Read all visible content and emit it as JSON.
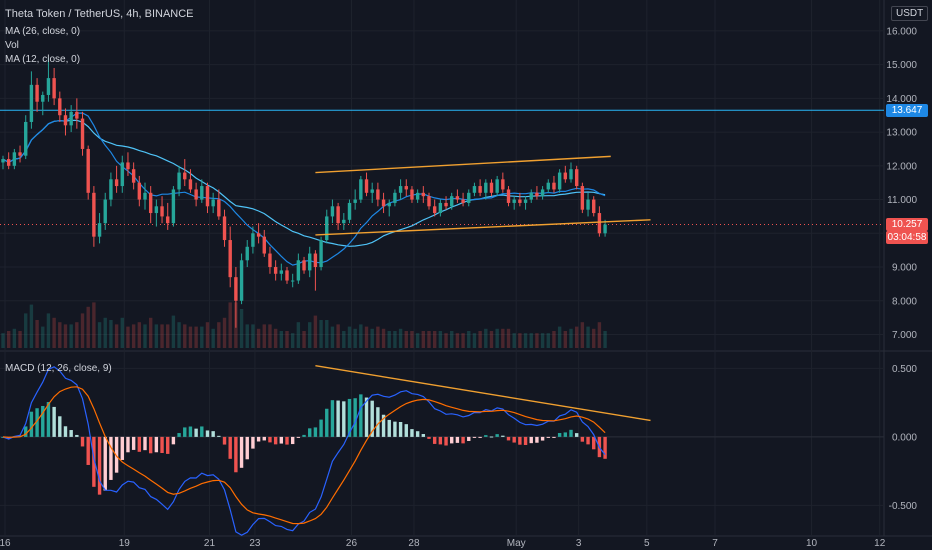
{
  "header": {
    "symbol": "Theta Token / TetherUS, 4h, BINANCE",
    "indicators": [
      "MA (26, close, 0)",
      "Vol",
      "MA (12, close, 0)"
    ],
    "macd_label": "MACD (12, 26, close, 9)",
    "currency": "USDT"
  },
  "chart_data": [
    {
      "type": "candlestick",
      "panel": "price",
      "ylim": [
        6.6,
        16.5
      ],
      "yticks": [
        "16.000",
        "15.000",
        "14.000",
        "13.000",
        "12.000",
        "11.000",
        "10.000",
        "9.000",
        "8.000",
        "7.000"
      ],
      "xticks": [
        "16",
        "19",
        "21",
        "23",
        "26",
        "28",
        "May",
        "3",
        "5",
        "7",
        "10",
        "12"
      ],
      "ohlc": [
        [
          12.1,
          12.3,
          11.9,
          12.2
        ],
        [
          12.2,
          12.4,
          11.9,
          12.0
        ],
        [
          12.0,
          12.5,
          11.9,
          12.4
        ],
        [
          12.4,
          12.6,
          12.1,
          12.3
        ],
        [
          12.3,
          13.5,
          12.2,
          13.3
        ],
        [
          13.3,
          14.8,
          13.1,
          14.4
        ],
        [
          14.4,
          14.6,
          13.6,
          13.9
        ],
        [
          13.9,
          14.2,
          13.5,
          14.1
        ],
        [
          14.1,
          15.2,
          13.9,
          14.6
        ],
        [
          14.6,
          14.9,
          13.8,
          14.0
        ],
        [
          14.0,
          14.2,
          13.3,
          13.5
        ],
        [
          13.5,
          13.7,
          12.9,
          13.2
        ],
        [
          13.2,
          13.8,
          13.0,
          13.6
        ],
        [
          13.6,
          14.0,
          13.1,
          13.4
        ],
        [
          13.4,
          13.6,
          12.3,
          12.5
        ],
        [
          12.5,
          12.6,
          11.0,
          11.2
        ],
        [
          11.2,
          11.4,
          9.6,
          9.9
        ],
        [
          9.9,
          10.6,
          9.7,
          10.3
        ],
        [
          10.3,
          11.2,
          10.1,
          11.0
        ],
        [
          11.0,
          11.8,
          10.8,
          11.6
        ],
        [
          11.6,
          12.0,
          11.2,
          11.4
        ],
        [
          11.4,
          12.3,
          11.2,
          12.1
        ],
        [
          12.1,
          12.4,
          11.7,
          11.9
        ],
        [
          11.9,
          12.1,
          11.3,
          11.5
        ],
        [
          11.5,
          11.7,
          10.8,
          11.0
        ],
        [
          11.0,
          11.5,
          10.7,
          11.2
        ],
        [
          11.2,
          11.4,
          10.3,
          10.6
        ],
        [
          10.6,
          11.0,
          10.2,
          10.8
        ],
        [
          10.8,
          11.1,
          10.3,
          10.5
        ],
        [
          10.5,
          10.9,
          10.1,
          10.3
        ],
        [
          10.3,
          11.4,
          10.2,
          11.3
        ],
        [
          11.3,
          12.0,
          11.1,
          11.8
        ],
        [
          11.8,
          12.2,
          11.4,
          11.6
        ],
        [
          11.6,
          11.9,
          11.2,
          11.3
        ],
        [
          11.3,
          11.5,
          10.8,
          11.0
        ],
        [
          11.0,
          11.6,
          10.9,
          11.4
        ],
        [
          11.4,
          11.5,
          10.6,
          10.8
        ],
        [
          10.8,
          11.2,
          10.6,
          11.0
        ],
        [
          11.0,
          11.3,
          10.4,
          10.5
        ],
        [
          10.5,
          10.7,
          9.6,
          9.8
        ],
        [
          9.8,
          10.2,
          8.4,
          8.7
        ],
        [
          8.7,
          9.0,
          7.2,
          8.0
        ],
        [
          8.0,
          9.4,
          7.9,
          9.2
        ],
        [
          9.2,
          9.8,
          9.0,
          9.6
        ],
        [
          9.6,
          10.2,
          9.4,
          10.0
        ],
        [
          10.0,
          10.3,
          9.7,
          9.9
        ],
        [
          9.9,
          10.1,
          9.3,
          9.4
        ],
        [
          9.4,
          9.6,
          8.8,
          9.0
        ],
        [
          9.0,
          9.2,
          8.6,
          8.8
        ],
        [
          8.8,
          9.1,
          8.6,
          8.9
        ],
        [
          8.9,
          9.0,
          8.5,
          8.6
        ],
        [
          8.6,
          8.8,
          8.4,
          8.6
        ],
        [
          8.6,
          9.4,
          8.5,
          9.2
        ],
        [
          9.2,
          9.3,
          8.8,
          8.9
        ],
        [
          8.9,
          9.6,
          8.7,
          9.4
        ],
        [
          9.4,
          9.5,
          8.3,
          9.0
        ],
        [
          9.0,
          9.9,
          8.9,
          9.8
        ],
        [
          9.8,
          10.7,
          9.7,
          10.5
        ],
        [
          10.5,
          11.0,
          10.3,
          10.8
        ],
        [
          10.8,
          10.9,
          10.1,
          10.3
        ],
        [
          10.3,
          10.6,
          10.1,
          10.4
        ],
        [
          10.4,
          11.0,
          10.3,
          10.9
        ],
        [
          10.9,
          11.3,
          10.7,
          11.0
        ],
        [
          11.0,
          11.7,
          10.9,
          11.6
        ],
        [
          11.6,
          11.8,
          11.1,
          11.2
        ],
        [
          11.2,
          11.5,
          10.9,
          11.3
        ],
        [
          11.3,
          11.5,
          10.8,
          11.0
        ],
        [
          11.0,
          11.2,
          10.6,
          10.8
        ],
        [
          10.8,
          11.0,
          10.5,
          10.9
        ],
        [
          10.9,
          11.3,
          10.8,
          11.2
        ],
        [
          11.2,
          11.6,
          11.0,
          11.4
        ],
        [
          11.4,
          11.6,
          11.1,
          11.3
        ],
        [
          11.3,
          11.4,
          10.9,
          11.0
        ],
        [
          11.0,
          11.3,
          10.9,
          11.2
        ],
        [
          11.2,
          11.4,
          10.9,
          11.1
        ],
        [
          11.1,
          11.2,
          10.7,
          10.8
        ],
        [
          10.8,
          11.0,
          10.5,
          10.6
        ],
        [
          10.6,
          11.0,
          10.5,
          10.9
        ],
        [
          10.9,
          11.1,
          10.7,
          10.8
        ],
        [
          10.8,
          11.2,
          10.7,
          11.1
        ],
        [
          11.1,
          11.3,
          10.9,
          11.0
        ],
        [
          11.0,
          11.2,
          10.8,
          10.9
        ],
        [
          10.9,
          11.3,
          10.8,
          11.2
        ],
        [
          11.2,
          11.5,
          11.1,
          11.4
        ],
        [
          11.4,
          11.6,
          11.1,
          11.2
        ],
        [
          11.2,
          11.6,
          11.0,
          11.5
        ],
        [
          11.5,
          11.6,
          11.1,
          11.2
        ],
        [
          11.2,
          11.7,
          11.1,
          11.6
        ],
        [
          11.6,
          11.8,
          11.2,
          11.3
        ],
        [
          11.3,
          11.4,
          10.8,
          10.9
        ],
        [
          10.9,
          11.1,
          10.7,
          11.0
        ],
        [
          11.0,
          11.2,
          10.8,
          10.9
        ],
        [
          10.9,
          11.1,
          10.7,
          11.0
        ],
        [
          11.0,
          11.3,
          10.9,
          11.2
        ],
        [
          11.2,
          11.4,
          11.0,
          11.1
        ],
        [
          11.1,
          11.4,
          11.0,
          11.3
        ],
        [
          11.3,
          11.6,
          11.2,
          11.5
        ],
        [
          11.5,
          11.7,
          11.2,
          11.3
        ],
        [
          11.3,
          11.9,
          11.2,
          11.8
        ],
        [
          11.8,
          12.0,
          11.5,
          11.6
        ],
        [
          11.6,
          12.1,
          11.5,
          11.9
        ],
        [
          11.9,
          12.0,
          11.3,
          11.4
        ],
        [
          11.4,
          11.5,
          10.6,
          10.7
        ],
        [
          10.7,
          11.2,
          10.5,
          11.0
        ],
        [
          11.0,
          11.1,
          10.5,
          10.6
        ],
        [
          10.6,
          10.8,
          9.9,
          10.0
        ],
        [
          10.0,
          10.4,
          9.9,
          10.26
        ]
      ],
      "horizontal_level": 13.647,
      "last_price": "10.257",
      "countdown": "03:04:58",
      "trendlines": [
        {
          "from_bar": 55,
          "from_value": 11.8,
          "to_bar": 107,
          "to_value": 12.28
        },
        {
          "from_bar": 55,
          "from_value": 9.95,
          "to_bar": 114,
          "to_value": 10.4
        }
      ]
    },
    {
      "type": "macd",
      "panel": "indicator",
      "ylim": [
        -0.68,
        0.62
      ],
      "yticks": [
        "0.500",
        "0.000",
        "-0.500"
      ],
      "trendline": {
        "from_bar": 55,
        "from_value": 0.52,
        "to_bar": 114,
        "to_value": 0.12
      }
    }
  ]
}
